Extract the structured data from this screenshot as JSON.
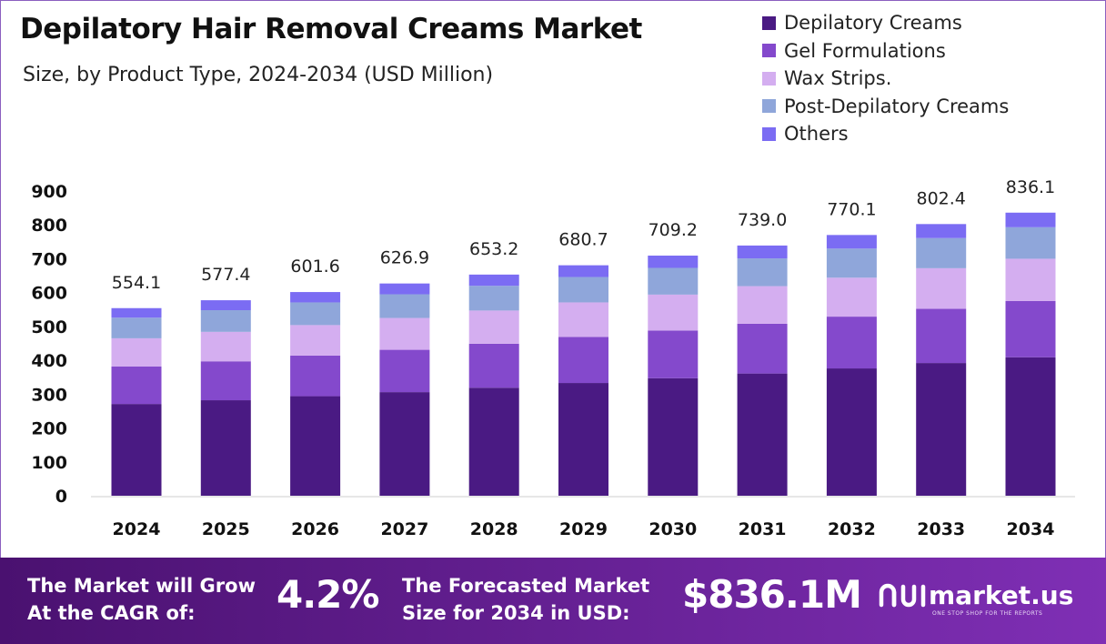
{
  "chart_data": {
    "type": "bar",
    "stacked": true,
    "title": "Depilatory Hair Removal Creams Market",
    "subtitle": "Size, by Product Type, 2024-2034 (USD Million)",
    "xlabel": "",
    "ylabel": "",
    "ylim": [
      0,
      900
    ],
    "yticks": [
      "0",
      "100",
      "200",
      "300",
      "400",
      "500",
      "600",
      "700",
      "800",
      "900"
    ],
    "legend_position": "top-right",
    "categories": [
      "2024",
      "2025",
      "2026",
      "2027",
      "2028",
      "2029",
      "2030",
      "2031",
      "2032",
      "2033",
      "2034"
    ],
    "totals": [
      "554.1",
      "577.4",
      "601.6",
      "626.9",
      "653.2",
      "680.7",
      "709.2",
      "739.0",
      "770.1",
      "802.4",
      "836.1"
    ],
    "series": [
      {
        "name": "Depilatory Creams",
        "color": "#4a1a83",
        "values": [
          271,
          282,
          294,
          306,
          319,
          333,
          347,
          361,
          376,
          392,
          409
        ]
      },
      {
        "name": "Gel Formulations",
        "color": "#8449cc",
        "values": [
          111,
          115,
          120,
          125,
          130,
          136,
          141,
          147,
          153,
          160,
          166
        ]
      },
      {
        "name": "Wax Strips.",
        "color": "#d4aef0",
        "values": [
          83,
          87,
          90,
          94,
          98,
          102,
          106,
          111,
          115,
          120,
          125
        ]
      },
      {
        "name": "Post-Depilatory Creams",
        "color": "#8fa6da",
        "values": [
          61,
          64,
          67,
          70,
          73,
          75,
          79,
          82,
          86,
          89,
          93
        ]
      },
      {
        "name": "Others",
        "color": "#7b6cf3",
        "values": [
          28.1,
          29.4,
          30.6,
          31.9,
          33.2,
          34.7,
          36.2,
          38.0,
          40.1,
          41.4,
          43.1
        ]
      }
    ]
  },
  "footer": {
    "cagr_label": [
      "The Market will Grow",
      "At the CAGR of:"
    ],
    "cagr_value": "4.2%",
    "forecast_label": [
      "The Forecasted Market",
      "Size for 2034 in USD:"
    ],
    "forecast_value": "$836.1M",
    "brand_name": "market.us",
    "brand_tagline": "ONE STOP SHOP FOR THE REPORTS"
  },
  "colors": {
    "footer_start": "#4a1170",
    "footer_end": "#7f2fb5"
  },
  "icons": {
    "brand_logo": "market-us-logo-icon"
  }
}
